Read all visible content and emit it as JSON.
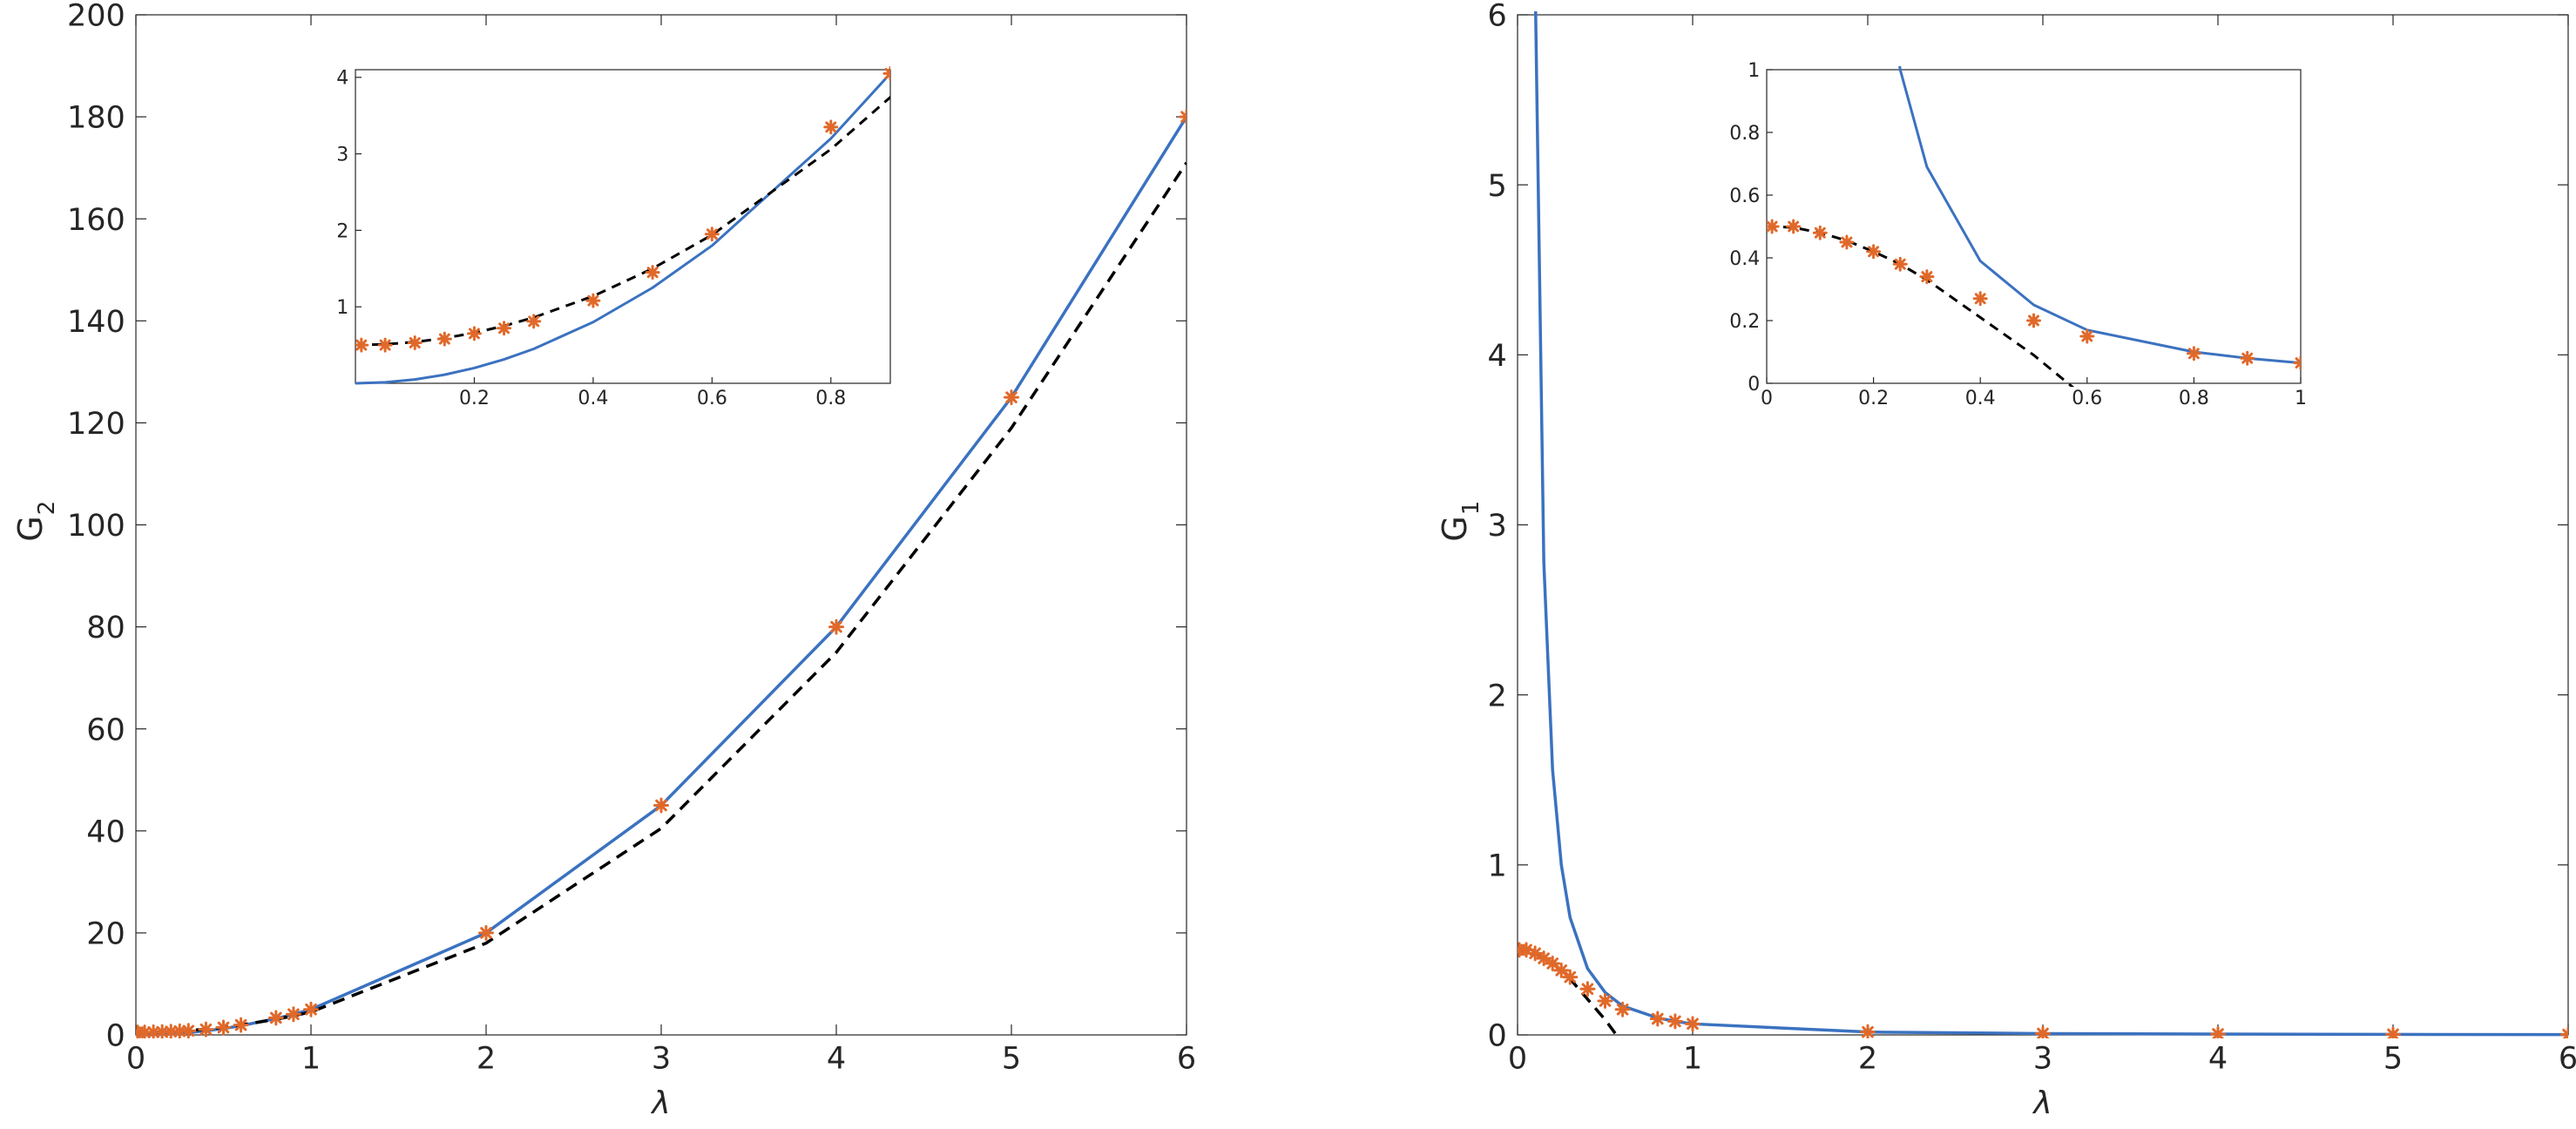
{
  "colors": {
    "model_line": "#3b72c0",
    "marker": "#e0692a",
    "approx_line": "#000000",
    "axis": "#262626"
  },
  "chart_data": [
    {
      "type": "line",
      "panel": "left",
      "xlabel": "λ",
      "ylabel": "G",
      "ylabel_sub": "2",
      "xlim": [
        0,
        6
      ],
      "ylim": [
        0,
        200
      ],
      "xticks": [
        "0",
        "1",
        "2",
        "3",
        "4",
        "5",
        "6"
      ],
      "yticks": [
        "0",
        "20",
        "40",
        "60",
        "80",
        "100",
        "120",
        "140",
        "160",
        "180",
        "200"
      ],
      "series": [
        {
          "style": "solid",
          "x": [
            0,
            0.05,
            0.1,
            0.15,
            0.2,
            0.25,
            0.3,
            0.4,
            0.5,
            0.6,
            0.8,
            0.9,
            1,
            2,
            3,
            4,
            5,
            6
          ],
          "y": [
            0,
            0.0125,
            0.05,
            0.1125,
            0.2,
            0.3125,
            0.45,
            0.8,
            1.25,
            1.8,
            3.2,
            4.05,
            5,
            20,
            45,
            80,
            125,
            180
          ]
        },
        {
          "style": "dashed",
          "x": [
            0,
            0.05,
            0.1,
            0.15,
            0.2,
            0.25,
            0.3,
            0.4,
            0.5,
            0.6,
            0.8,
            0.9,
            1,
            2,
            3,
            4,
            5,
            6
          ],
          "y": [
            0.5,
            0.51,
            0.54,
            0.59,
            0.66,
            0.75,
            0.86,
            1.14,
            1.5,
            1.94,
            3.06,
            3.74,
            4.5,
            18,
            40.5,
            75,
            119,
            171
          ]
        },
        {
          "style": "markers",
          "x": [
            0.01,
            0.05,
            0.1,
            0.15,
            0.2,
            0.25,
            0.3,
            0.4,
            0.5,
            0.6,
            0.8,
            0.9,
            1,
            2,
            3,
            4,
            5,
            6
          ],
          "y": [
            0.5,
            0.5,
            0.53,
            0.58,
            0.65,
            0.72,
            0.81,
            1.08,
            1.45,
            1.95,
            3.35,
            4.05,
            5,
            20,
            45,
            80,
            125,
            180
          ]
        }
      ],
      "inset": {
        "xlim": [
          0,
          0.9
        ],
        "ylim": [
          0,
          4.1
        ],
        "xticks": [
          "0.2",
          "0.4",
          "0.6",
          "0.8"
        ],
        "yticks": [
          "1",
          "2",
          "3",
          "4"
        ]
      }
    },
    {
      "type": "line",
      "panel": "right",
      "xlabel": "λ",
      "ylabel": "G",
      "ylabel_sub": "1",
      "xlim": [
        0,
        6
      ],
      "ylim": [
        0,
        6
      ],
      "xticks": [
        "0",
        "1",
        "2",
        "3",
        "4",
        "5",
        "6"
      ],
      "yticks": [
        "0",
        "1",
        "2",
        "3",
        "4",
        "5",
        "6"
      ],
      "series": [
        {
          "style": "solid",
          "x": [
            0.1,
            0.15,
            0.2,
            0.25,
            0.3,
            0.4,
            0.5,
            0.6,
            0.8,
            0.9,
            1,
            2,
            3,
            4,
            5,
            6
          ],
          "y": [
            6.25,
            2.78,
            1.56,
            1.0,
            0.69,
            0.39,
            0.25,
            0.17,
            0.1,
            0.08,
            0.065,
            0.017,
            0.008,
            0.005,
            0.003,
            0.002
          ]
        },
        {
          "style": "dashed",
          "x": [
            0,
            0.05,
            0.1,
            0.15,
            0.2,
            0.25,
            0.3,
            0.4,
            0.5,
            0.6
          ],
          "y": [
            0.5,
            0.497,
            0.48,
            0.455,
            0.42,
            0.38,
            0.33,
            0.21,
            0.09,
            -0.05
          ]
        },
        {
          "style": "markers",
          "x": [
            0.01,
            0.05,
            0.1,
            0.15,
            0.2,
            0.25,
            0.3,
            0.4,
            0.5,
            0.6,
            0.8,
            0.9,
            1,
            2,
            3,
            4,
            5,
            6
          ],
          "y": [
            0.5,
            0.5,
            0.48,
            0.45,
            0.42,
            0.38,
            0.34,
            0.27,
            0.2,
            0.15,
            0.095,
            0.08,
            0.065,
            0.017,
            0.008,
            0.005,
            0.003,
            0.002
          ]
        }
      ],
      "inset": {
        "xlim": [
          0,
          1
        ],
        "ylim": [
          0,
          1
        ],
        "xticks": [
          "0",
          "0.2",
          "0.4",
          "0.6",
          "0.8",
          "1"
        ],
        "yticks": [
          "0",
          "0.2",
          "0.4",
          "0.6",
          "0.8",
          "1"
        ]
      }
    }
  ]
}
